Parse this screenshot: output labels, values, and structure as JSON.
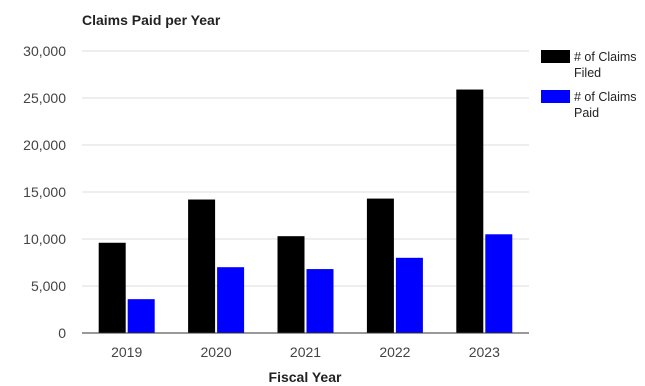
{
  "chart_data": {
    "type": "bar",
    "title": "Claims Paid per Year",
    "xlabel": "Fiscal Year",
    "ylabel": "",
    "categories": [
      "2019",
      "2020",
      "2021",
      "2022",
      "2023"
    ],
    "ylim": [
      0,
      30000
    ],
    "yticks": [
      0,
      5000,
      10000,
      15000,
      20000,
      25000,
      30000
    ],
    "ytick_labels": [
      "0",
      "5,000",
      "10,000",
      "15,000",
      "20,000",
      "25,000",
      "30,000"
    ],
    "grid": true,
    "legend_position": "right",
    "series": [
      {
        "name_lines": [
          "# of Claims",
          "Filed"
        ],
        "color": "#000000",
        "values": [
          9600,
          14200,
          10300,
          14300,
          25900
        ]
      },
      {
        "name_lines": [
          "# of Claims",
          "Paid"
        ],
        "color": "#0000ff",
        "values": [
          3600,
          7000,
          6800,
          8000,
          10500
        ]
      }
    ]
  }
}
